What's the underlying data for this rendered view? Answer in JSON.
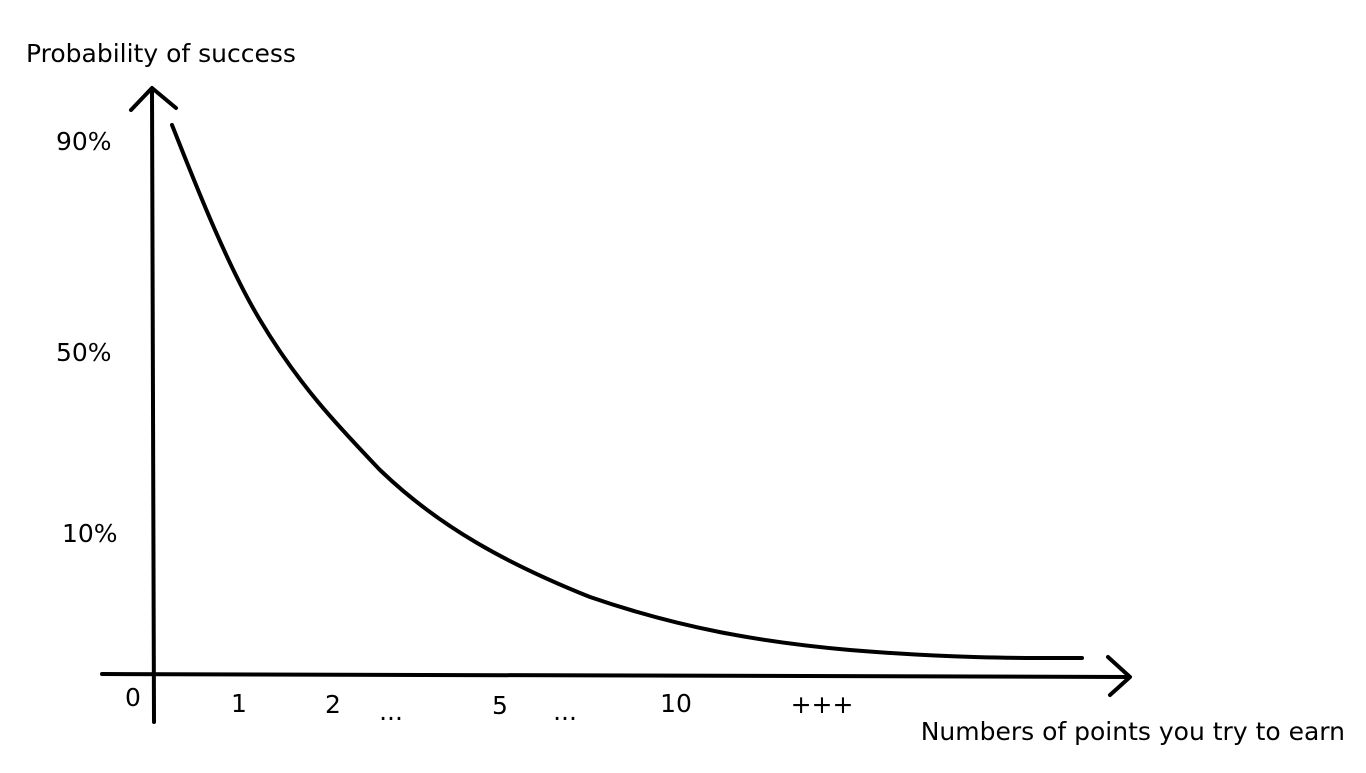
{
  "chart_data": {
    "type": "line",
    "title": "",
    "ylabel": "Probability of success",
    "xlabel": "Numbers of points you try to earn",
    "x_ticks": [
      "0",
      "1",
      "2",
      "...",
      "5",
      "...",
      "10",
      "+++"
    ],
    "y_ticks": [
      "90%",
      "50%",
      "10%"
    ],
    "curve": {
      "shape": "decreasing exponential decay",
      "start_percent": 90,
      "end_percent": 3
    },
    "grid": false,
    "legend": "none"
  }
}
